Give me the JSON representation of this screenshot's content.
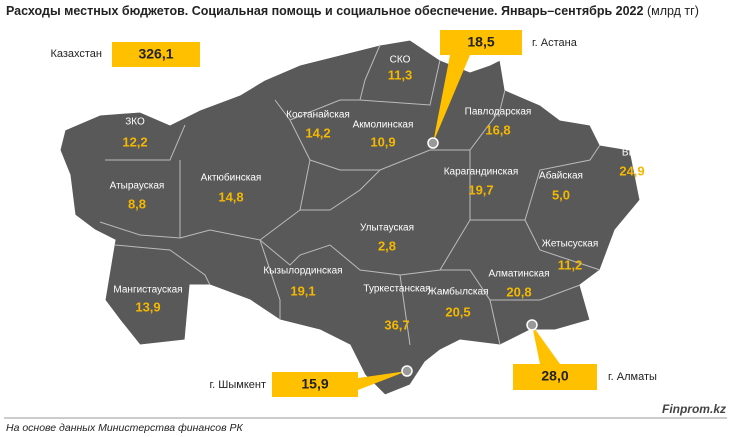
{
  "header": {
    "title": "Расходы местных бюджетов. Социальная помощь и социальное обеспечение. Январь–сентябрь 2022",
    "unit": "(млрд тг)"
  },
  "country": {
    "label": "Казахстан",
    "value": "326,1"
  },
  "regions": [
    {
      "name": "ЗКО",
      "value": "12,2"
    },
    {
      "name": "Атырауская",
      "value": "8,8"
    },
    {
      "name": "Мангистауская",
      "value": "13,9"
    },
    {
      "name": "Актюбинская",
      "value": "14,8"
    },
    {
      "name": "Костанайская",
      "value": "14,2"
    },
    {
      "name": "СКО",
      "value": "11,3"
    },
    {
      "name": "Акмолинская",
      "value": "10,9"
    },
    {
      "name": "Павлодарская",
      "value": "16,8"
    },
    {
      "name": "ВКО",
      "value": "24,9"
    },
    {
      "name": "Карагандинская",
      "value": "19,7"
    },
    {
      "name": "Абайская",
      "value": "5,0"
    },
    {
      "name": "Улытауская",
      "value": "2,8"
    },
    {
      "name": "Жетысуская",
      "value": "11,2"
    },
    {
      "name": "Кызылординская",
      "value": "19,1"
    },
    {
      "name": "Алматинская",
      "value": "20,8"
    },
    {
      "name": "Жамбылская",
      "value": "20,5"
    },
    {
      "name": "Туркестанская",
      "value": "36,7"
    }
  ],
  "cities": [
    {
      "label": "г. Астана",
      "value": "18,5"
    },
    {
      "label": "г. Шымкент",
      "value": "15,9"
    },
    {
      "label": "г. Алматы",
      "value": "28,0"
    }
  ],
  "footer": {
    "source": "На основе данных Министерства финансов РК",
    "brand": "Finprom.kz"
  }
}
